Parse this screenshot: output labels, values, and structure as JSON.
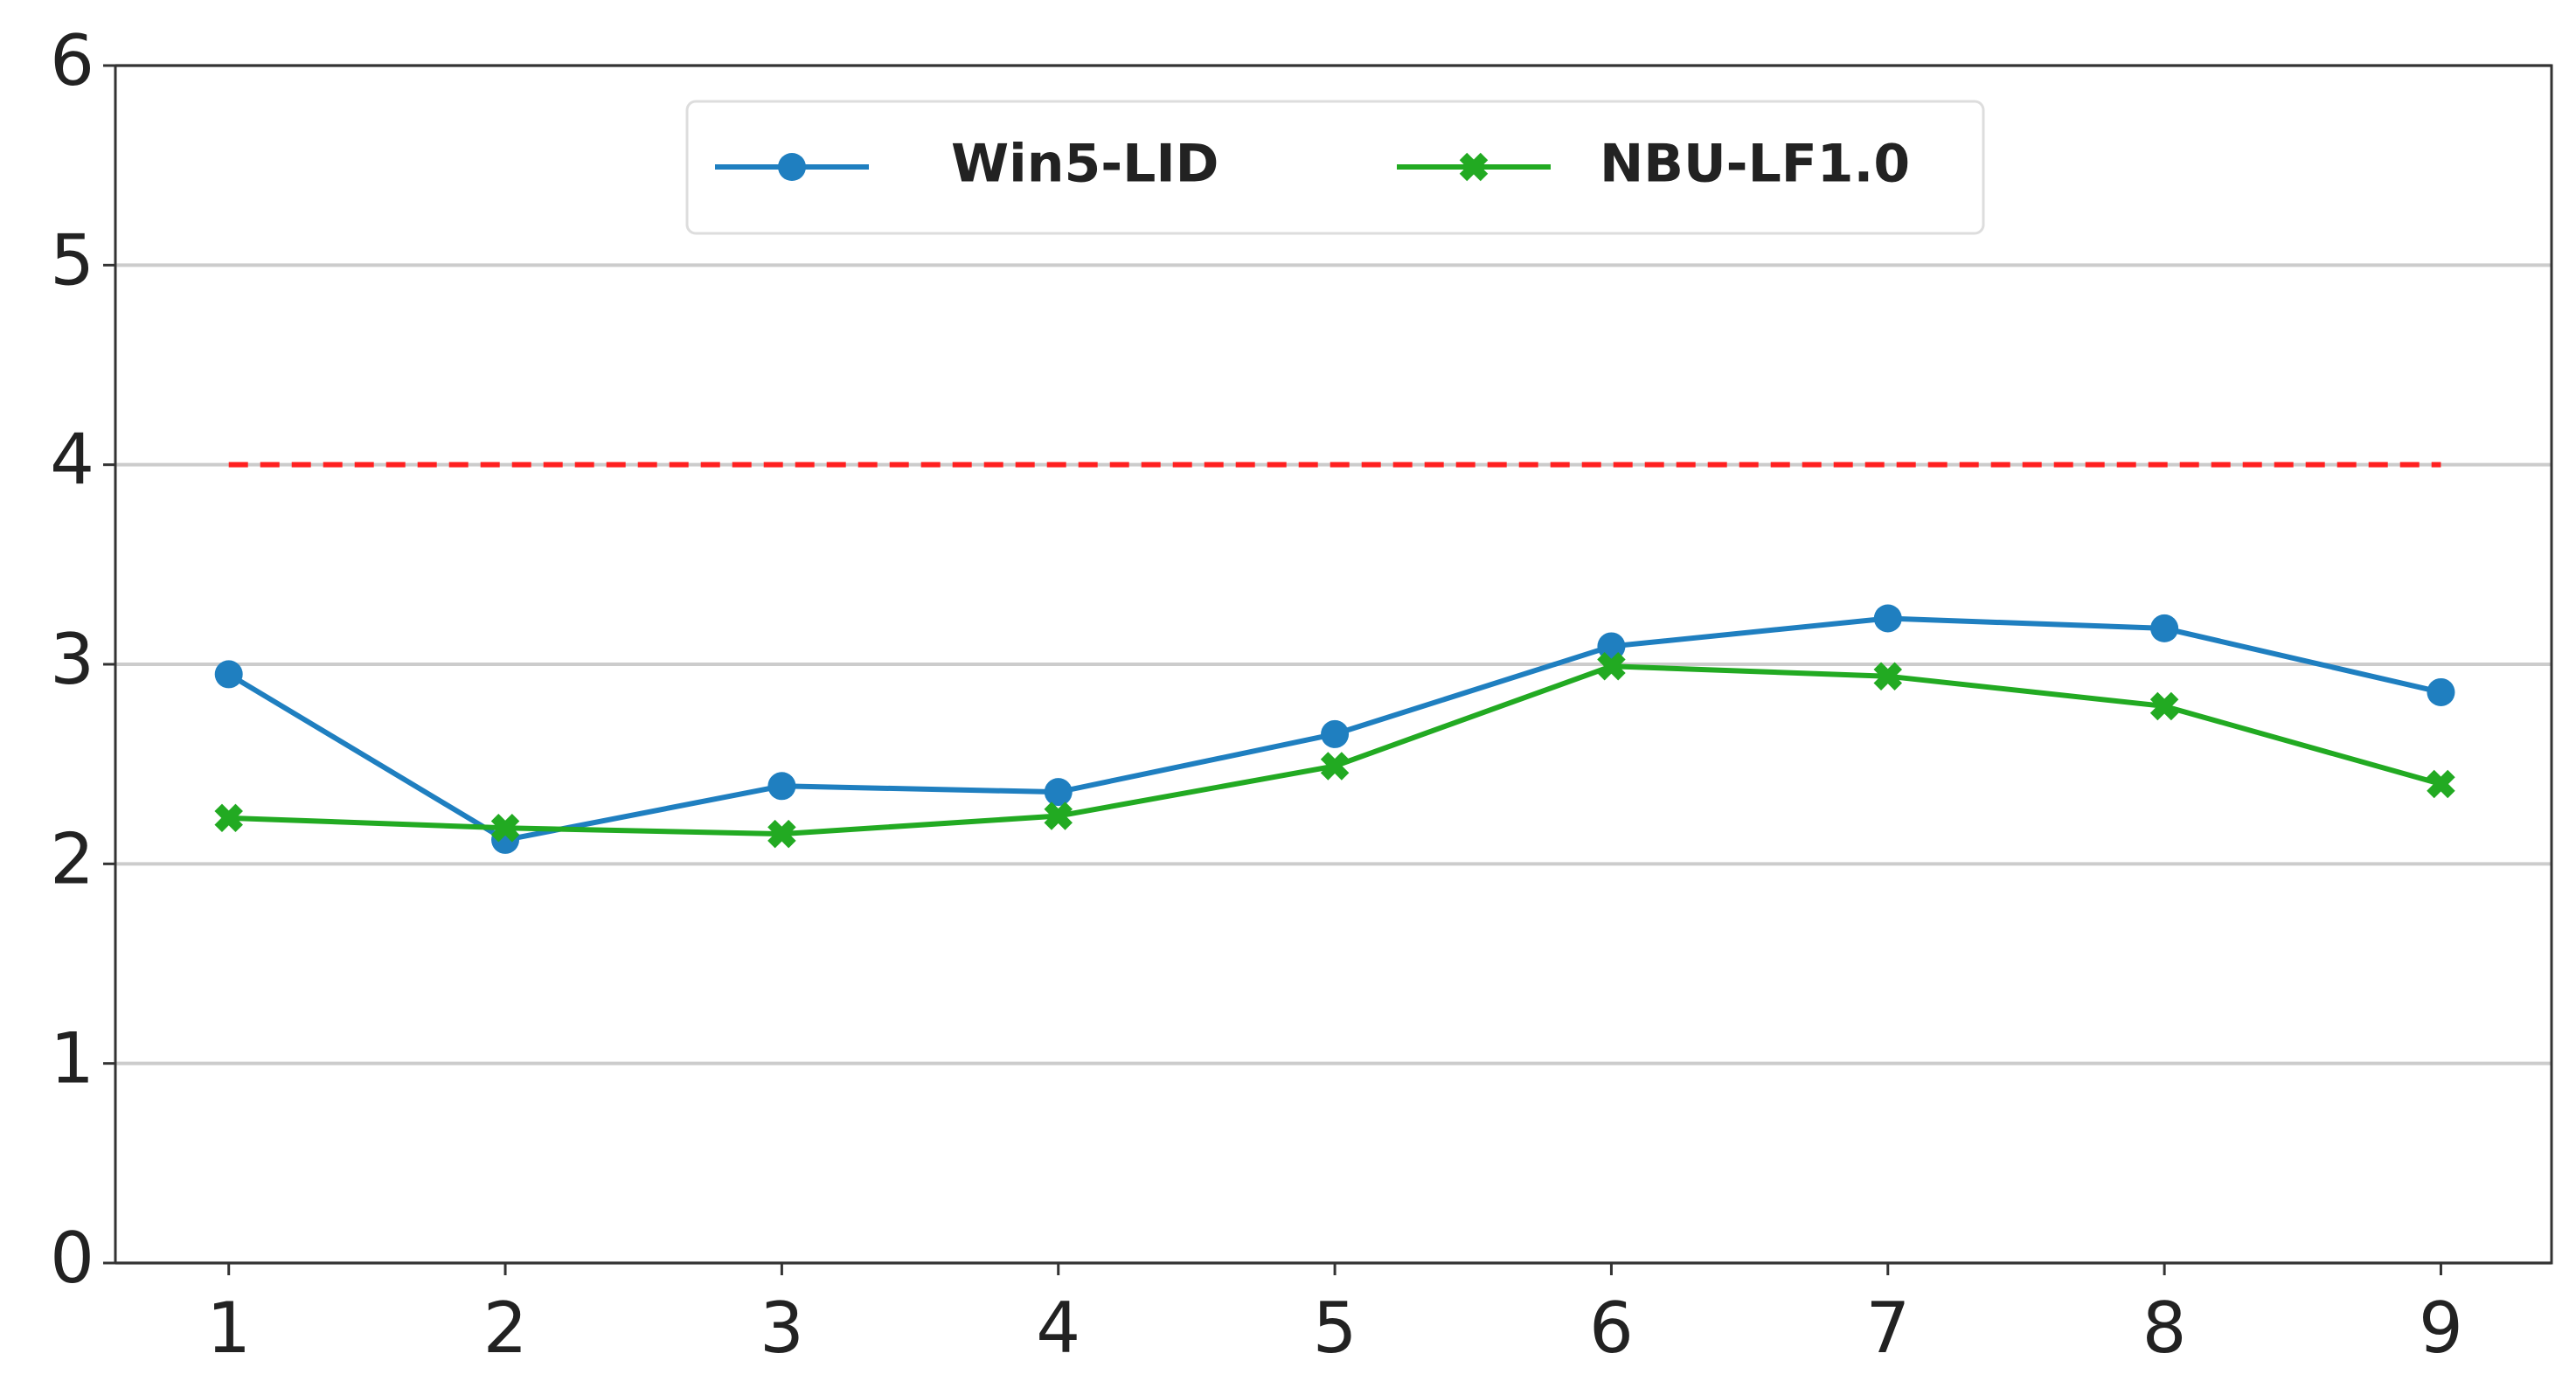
{
  "chart_data": {
    "type": "line",
    "x": [
      1,
      2,
      3,
      4,
      5,
      6,
      7,
      8,
      9
    ],
    "series": [
      {
        "name": "Win5-LID",
        "color": "#1f7fc0",
        "marker": "circle",
        "values": [
          2.95,
          2.12,
          2.39,
          2.36,
          2.65,
          3.09,
          3.23,
          3.18,
          2.86
        ]
      },
      {
        "name": "NBU-LF1.0",
        "color": "#22aa22",
        "marker": "x",
        "values": [
          2.23,
          2.18,
          2.15,
          2.24,
          2.49,
          2.99,
          2.94,
          2.79,
          2.4
        ]
      }
    ],
    "reference_line": {
      "value": 4,
      "color": "#ff2020"
    },
    "xlim": [
      0.59,
      9.4
    ],
    "xticks": [
      1,
      2,
      3,
      4,
      5,
      6,
      7,
      8,
      9
    ],
    "ylim": [
      0,
      6
    ],
    "yticks": [
      0,
      1,
      2,
      3,
      4,
      5,
      6
    ],
    "grid": true,
    "legend": "top"
  }
}
